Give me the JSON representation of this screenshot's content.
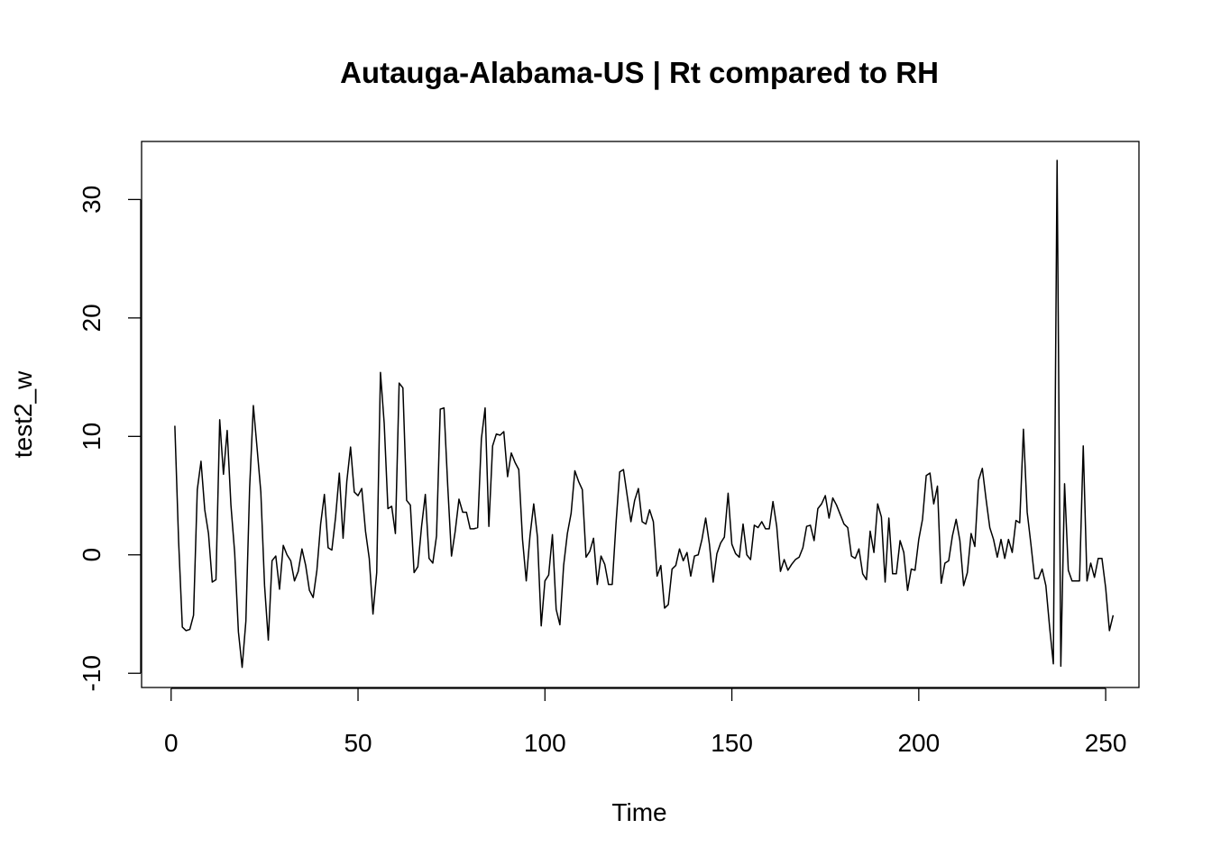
{
  "chart_data": {
    "type": "line",
    "title": "Autauga-Alabama-US | Rt compared to RH",
    "xlabel": "Time",
    "ylabel": "test2_w",
    "xlim": [
      -7.9,
      258.9
    ],
    "ylim": [
      -11.2,
      34.9
    ],
    "x_ticks": [
      0,
      50,
      100,
      150,
      200,
      250
    ],
    "y_ticks": [
      -10,
      0,
      10,
      20,
      30
    ],
    "grid": false,
    "legend": "none",
    "line_color": "#000000",
    "series": [
      {
        "x_start": 1,
        "values": [
          10.9,
          1.2,
          -6.1,
          -6.4,
          -6.3,
          -5.1,
          5.5,
          7.9,
          3.8,
          1.8,
          -2.3,
          -2.1,
          11.4,
          6.8,
          10.5,
          4.2,
          0.2,
          -6.5,
          -9.5,
          -5.6,
          5.6,
          12.6,
          9.0,
          5.3,
          -2.6,
          -7.2,
          -0.5,
          -0.1,
          -2.9,
          0.8,
          0.0,
          -0.5,
          -2.2,
          -1.4,
          0.5,
          -0.9,
          -3.0,
          -3.6,
          -1.3,
          2.6,
          5.1,
          0.6,
          0.4,
          3.2,
          6.9,
          1.4,
          6.2,
          9.1,
          5.3,
          5.0,
          5.6,
          2.0,
          -0.3,
          -5.0,
          -1.5,
          15.4,
          11.1,
          3.9,
          4.1,
          1.8,
          14.5,
          14.1,
          4.6,
          4.2,
          -1.5,
          -1.0,
          2.4,
          5.1,
          -0.3,
          -0.7,
          1.6,
          12.3,
          12.4,
          5.8,
          -0.1,
          2.0,
          4.7,
          3.6,
          3.6,
          2.2,
          2.2,
          2.3,
          9.8,
          12.4,
          2.4,
          9.2,
          10.2,
          10.1,
          10.4,
          6.6,
          8.6,
          7.8,
          7.2,
          1.3,
          -2.2,
          1.6,
          4.3,
          1.5,
          -6.0,
          -2.2,
          -1.7,
          1.7,
          -4.6,
          -5.9,
          -0.9,
          1.8,
          3.5,
          7.1,
          6.2,
          5.5,
          -0.2,
          0.3,
          1.4,
          -2.5,
          -0.1,
          -0.8,
          -2.5,
          -2.5,
          2.6,
          7.0,
          7.2,
          5.0,
          2.8,
          4.6,
          5.6,
          2.8,
          2.6,
          3.8,
          2.8,
          -1.8,
          -0.9,
          -4.5,
          -4.2,
          -1.2,
          -0.9,
          0.5,
          -0.5,
          0.2,
          -1.8,
          -0.1,
          0.0,
          1.3,
          3.1,
          0.9,
          -2.3,
          0.1,
          1.0,
          1.5,
          5.2,
          0.9,
          0.1,
          -0.2,
          2.6,
          0.0,
          -0.4,
          2.5,
          2.3,
          2.8,
          2.2,
          2.2,
          4.5,
          2.4,
          -1.4,
          -0.4,
          -1.3,
          -0.8,
          -0.4,
          -0.2,
          0.6,
          2.4,
          2.5,
          1.2,
          3.9,
          4.3,
          5.0,
          3.1,
          4.8,
          4.2,
          3.4,
          2.6,
          2.3,
          -0.1,
          -0.3,
          0.5,
          -1.6,
          -2.1,
          2.0,
          0.2,
          4.3,
          3.2,
          -2.3,
          3.1,
          -1.6,
          -1.6,
          1.2,
          0.2,
          -3.0,
          -1.2,
          -1.3,
          1.3,
          3.0,
          6.7,
          6.9,
          4.3,
          5.8,
          -2.4,
          -0.7,
          -0.5,
          1.6,
          3.0,
          1.2,
          -2.6,
          -1.5,
          1.8,
          0.7,
          6.3,
          7.3,
          4.7,
          2.3,
          1.3,
          -0.2,
          1.3,
          -0.3,
          1.3,
          0.2,
          2.9,
          2.7,
          10.6,
          3.6,
          0.9,
          -2.0,
          -2.0,
          -1.2,
          -2.6,
          -6.1,
          -9.2,
          33.3,
          -9.4,
          6.0,
          -1.3,
          -2.2,
          -2.2,
          -2.2,
          9.2,
          -2.2,
          -0.7,
          -1.9,
          -0.3,
          -0.3,
          -2.8,
          -6.4,
          -5.1
        ]
      }
    ]
  }
}
